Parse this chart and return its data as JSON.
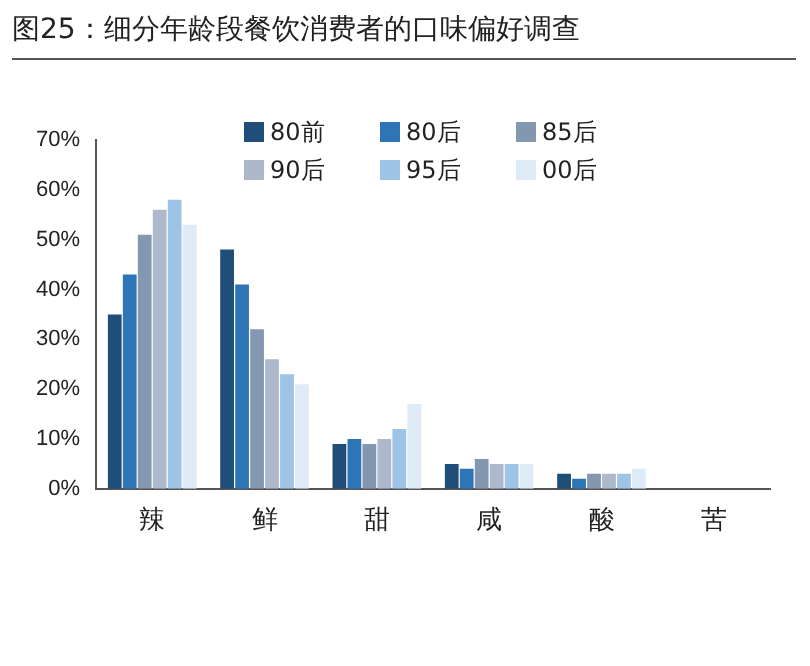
{
  "chart_data": {
    "type": "bar",
    "title": "图25：细分年龄段餐饮消费者的口味偏好调查",
    "categories": [
      "辣",
      "鲜",
      "甜",
      "咸",
      "酸",
      "苦"
    ],
    "series": [
      {
        "name": "80前",
        "color": "#1f4e79",
        "values": [
          35,
          48,
          9,
          5,
          3,
          0
        ]
      },
      {
        "name": "80后",
        "color": "#2e75b6",
        "values": [
          43,
          41,
          10,
          4,
          2,
          0
        ]
      },
      {
        "name": "85后",
        "color": "#8497b0",
        "values": [
          51,
          32,
          9,
          6,
          3,
          0
        ]
      },
      {
        "name": "90后",
        "color": "#adb9ca",
        "values": [
          56,
          26,
          10,
          5,
          3,
          0
        ]
      },
      {
        "name": "95后",
        "color": "#9dc3e6",
        "values": [
          58,
          23,
          12,
          5,
          3,
          0
        ]
      },
      {
        "name": "00后",
        "color": "#deebf7",
        "values": [
          53,
          21,
          17,
          5,
          4,
          0
        ]
      }
    ],
    "ylim": [
      0,
      70
    ],
    "yticks": [
      {
        "value": 0,
        "label": "0%"
      },
      {
        "value": 10,
        "label": "10%"
      },
      {
        "value": 20,
        "label": "20%"
      },
      {
        "value": 30,
        "label": "30%"
      },
      {
        "value": 40,
        "label": "40%"
      },
      {
        "value": 50,
        "label": "50%"
      },
      {
        "value": 60,
        "label": "60%"
      },
      {
        "value": 70,
        "label": "70%"
      }
    ],
    "grid": false,
    "legend": "top right"
  }
}
